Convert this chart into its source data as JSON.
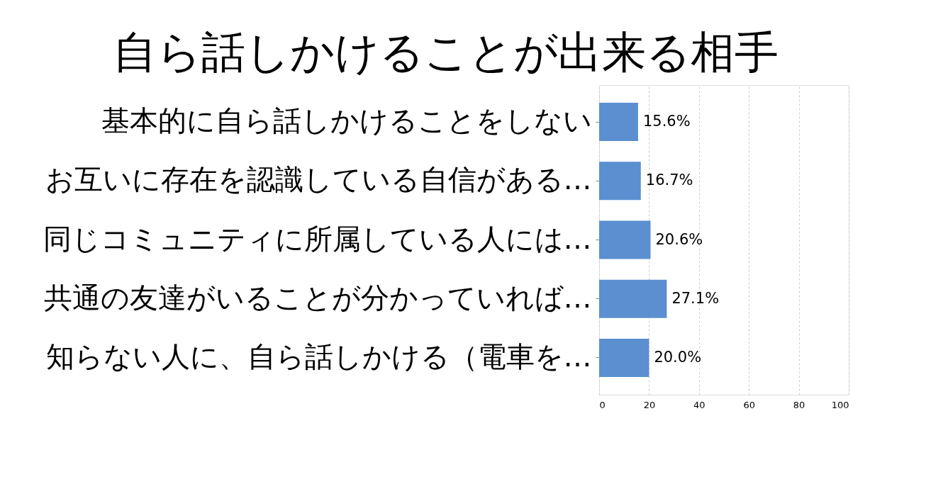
{
  "chart_data": {
    "type": "bar",
    "orientation": "horizontal",
    "title": "自ら話しかけることが出来る相手",
    "categories": [
      "基本的に自ら話しかけることをしない",
      "お互いに存在を認識している自信がある…",
      "同じコミュニティに所属している人には…",
      "共通の友達がいることが分かっていれば…",
      "知らない人に、自ら話しかける（電車を…"
    ],
    "values": [
      15.6,
      16.7,
      20.6,
      27.1,
      20.0
    ],
    "value_labels": [
      "15.6%",
      "16.7%",
      "20.6%",
      "27.1%",
      "20.0%"
    ],
    "color": "#5b8fd0",
    "xlim": [
      0,
      100
    ],
    "xticks": [
      0,
      20,
      40,
      60,
      80,
      100
    ],
    "grid": "x"
  }
}
